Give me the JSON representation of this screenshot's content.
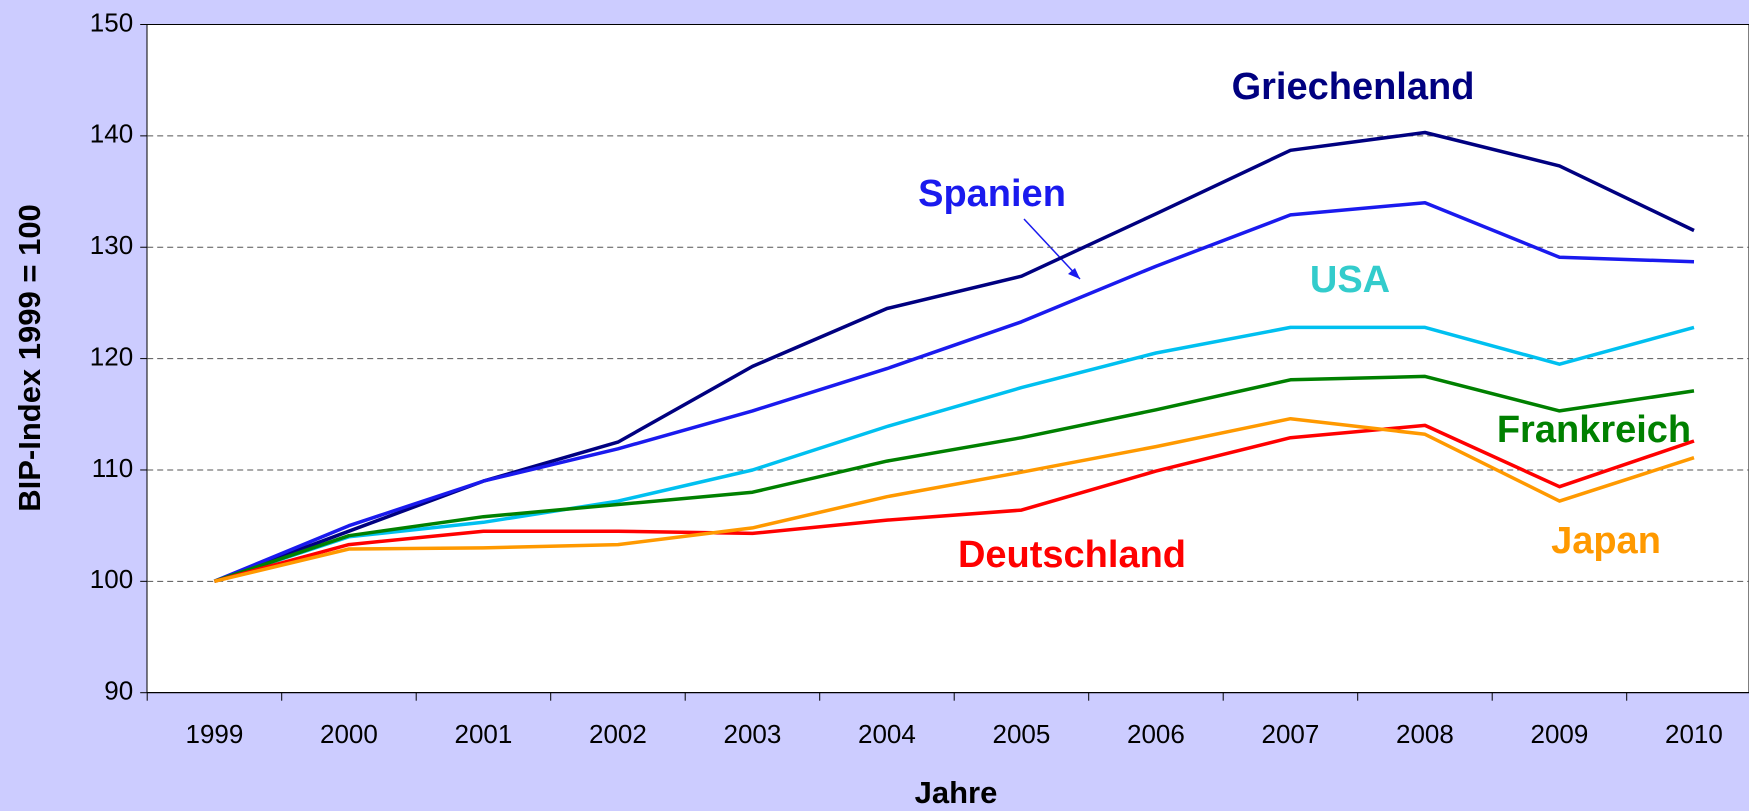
{
  "chart_data": {
    "type": "line",
    "x_label": "Jahre",
    "y_label": "BIP-Index 1999 = 100",
    "categories": [
      "1999",
      "2000",
      "2001",
      "2002",
      "2003",
      "2004",
      "2005",
      "2006",
      "2007",
      "2008",
      "2009",
      "2010"
    ],
    "series": [
      {
        "name": "Griechenland",
        "color": "#000080",
        "values": [
          100,
          104.5,
          109,
          112.5,
          119.3,
          124.5,
          127.4,
          133,
          138.7,
          140.3,
          137.3,
          131.5
        ]
      },
      {
        "name": "Spanien",
        "color": "#1a1aee",
        "values": [
          100,
          105,
          109,
          111.9,
          115.3,
          119.1,
          123.3,
          128.3,
          132.9,
          134,
          129.1,
          128.7
        ]
      },
      {
        "name": "USA",
        "color": "#00c0f0",
        "values": [
          100,
          104,
          105.3,
          107.2,
          110,
          113.9,
          117.4,
          120.5,
          122.8,
          122.8,
          119.5,
          122.8
        ]
      },
      {
        "name": "Frankreich",
        "color": "#008000",
        "values": [
          100,
          104.1,
          105.8,
          106.9,
          108,
          110.8,
          112.9,
          115.4,
          118.1,
          118.4,
          115.3,
          117.1
        ]
      },
      {
        "name": "Deutschland",
        "color": "#ff0000",
        "values": [
          100,
          103.3,
          104.5,
          104.5,
          104.3,
          105.5,
          106.4,
          109.9,
          112.9,
          114,
          108.5,
          112.6
        ]
      },
      {
        "name": "Japan",
        "color": "#ff9900",
        "values": [
          100,
          102.9,
          103,
          103.3,
          104.8,
          107.6,
          109.8,
          112.1,
          114.6,
          113.2,
          107.2,
          111.1
        ]
      }
    ],
    "ylim": [
      90,
      150
    ],
    "yticks": [
      90,
      100,
      110,
      120,
      130,
      140,
      150
    ],
    "grid": true
  }
}
